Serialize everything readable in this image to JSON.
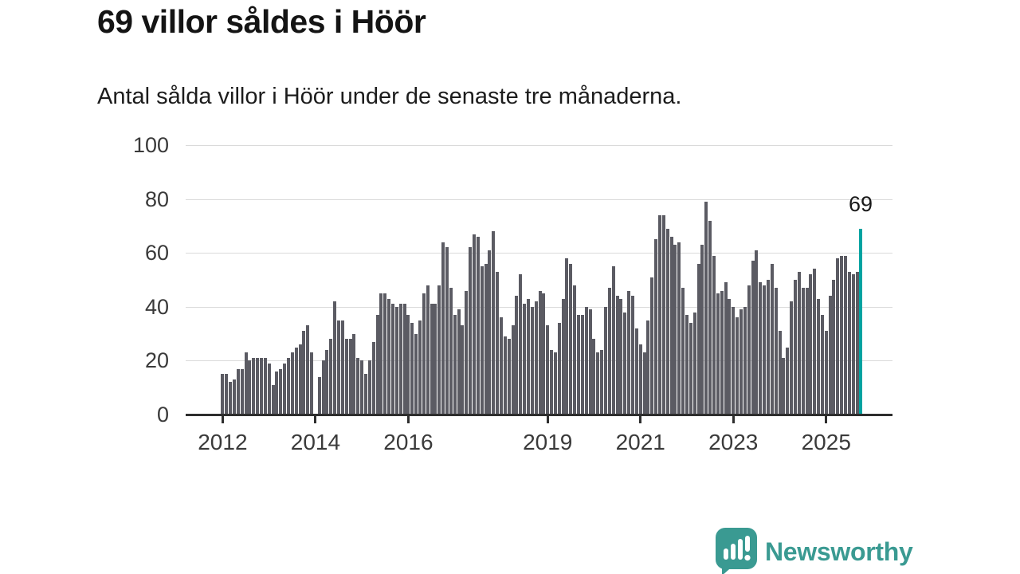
{
  "title": "69 villor såldes i Höör",
  "subtitle": "Antal sålda villor i Höör under de senaste tre månaderna.",
  "branding": {
    "logo_text": "Newsworthy",
    "logo_icon": "bar-chart-speech-bubble-icon"
  },
  "colors": {
    "bar": "#5b5b63",
    "highlight": "#00a3a1",
    "grid": "#dadada",
    "axis": "#2e2e2e",
    "tick_text": "#3a3a3a",
    "title_text": "#141414",
    "logo": "#3a9a92"
  },
  "chart_data": {
    "type": "bar",
    "title": "69 villor såldes i Höör",
    "xlabel": "",
    "ylabel": "",
    "ylim": [
      0,
      100
    ],
    "grid": "horizontal",
    "legend": "none",
    "y_ticks": [
      0,
      20,
      40,
      60,
      80,
      100
    ],
    "x_ticks": [
      {
        "label": "2012",
        "index": 0
      },
      {
        "label": "2014",
        "index": 24
      },
      {
        "label": "2016",
        "index": 48
      },
      {
        "label": "2019",
        "index": 84
      },
      {
        "label": "2021",
        "index": 108
      },
      {
        "label": "2023",
        "index": 132
      },
      {
        "label": "2025",
        "index": 156
      }
    ],
    "start_month": "2012-01",
    "end_month": "2025-10",
    "values": [
      15,
      15,
      12,
      13,
      17,
      17,
      23,
      20,
      21,
      21,
      21,
      21,
      19,
      11,
      16,
      17,
      19,
      21,
      23,
      25,
      26,
      31,
      33,
      23,
      null,
      14,
      20,
      24,
      28,
      42,
      35,
      35,
      28,
      28,
      30,
      21,
      20,
      15,
      20,
      27,
      37,
      45,
      45,
      43,
      41,
      40,
      41,
      41,
      37,
      34,
      30,
      35,
      45,
      48,
      41,
      41,
      48,
      64,
      62,
      47,
      37,
      39,
      33,
      46,
      62,
      67,
      66,
      55,
      56,
      61,
      68,
      53,
      36,
      29,
      28,
      33,
      44,
      52,
      41,
      43,
      40,
      42,
      46,
      45,
      33,
      24,
      23,
      34,
      43,
      58,
      56,
      48,
      37,
      37,
      40,
      39,
      28,
      23,
      24,
      40,
      47,
      55,
      44,
      43,
      38,
      46,
      44,
      32,
      26,
      23,
      35,
      51,
      65,
      74,
      74,
      69,
      66,
      63,
      64,
      47,
      37,
      34,
      38,
      56,
      63,
      79,
      72,
      59,
      45,
      46,
      49,
      43,
      40,
      36,
      39,
      40,
      48,
      57,
      61,
      49,
      48,
      50,
      56,
      47,
      31,
      21,
      25,
      42,
      50,
      53,
      47,
      47,
      52,
      54,
      43,
      37,
      31,
      44,
      50,
      58,
      59,
      59,
      53,
      52,
      53,
      69
    ],
    "highlight": {
      "index": 165,
      "value": 69,
      "label": "69"
    }
  }
}
